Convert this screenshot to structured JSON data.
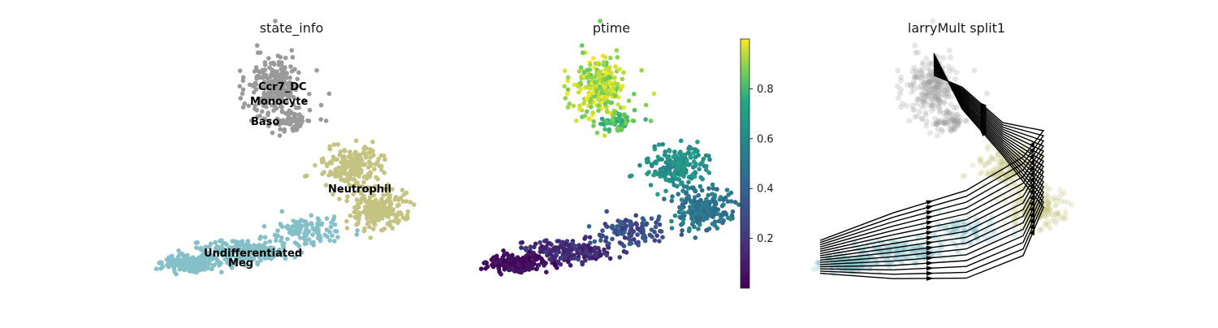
{
  "chart_data": [
    {
      "type": "scatter",
      "title": "state_info",
      "xlabel": "",
      "ylabel": "",
      "legend": "on-data",
      "categories": [
        "Ccr7_DC",
        "Monocyte",
        "Baso",
        "Neutrophil",
        "Undifferentiated",
        "Meg"
      ],
      "colors": {
        "Ccr7_DC": "#9a9a9a",
        "Monocyte": "#9a9a9a",
        "Baso": "#9a9a9a",
        "Neutrophil": "#c4c381",
        "Undifferentiated": "#85c0c8",
        "Meg": "#85c0c8"
      }
    },
    {
      "type": "scatter",
      "title": "ptime",
      "xlabel": "",
      "ylabel": "",
      "colormap": "viridis",
      "colorbar": {
        "range": [
          0,
          1
        ],
        "ticks": [
          "0.2",
          "0.4",
          "0.6",
          "0.8"
        ],
        "tick_values": [
          0.2,
          0.4,
          0.6,
          0.8
        ]
      }
    },
    {
      "type": "scatter",
      "title": "larryMult split1",
      "xlabel": "",
      "ylabel": "",
      "overlay": "velocity streamlines with arrows",
      "colors": {
        "top": "#9a9a9a",
        "middle": "#c4c381",
        "bottom": "#85c0c8"
      }
    }
  ]
}
